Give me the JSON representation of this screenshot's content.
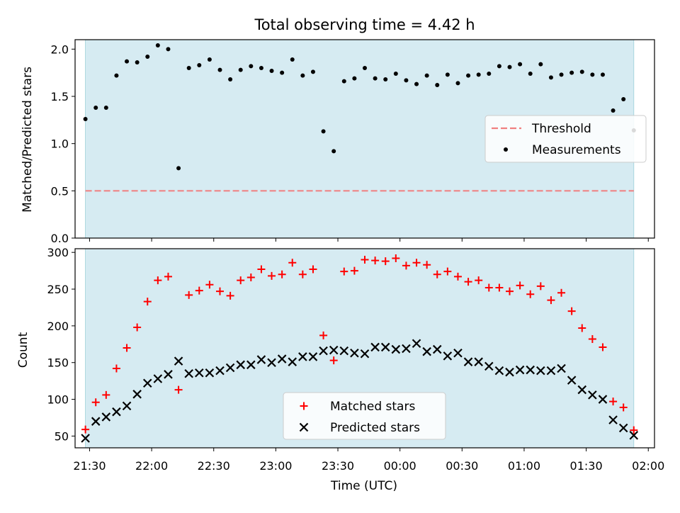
{
  "chart_data": [
    {
      "type": "scatter",
      "title": "Total observing time = 4.42 h",
      "ylabel": "Matched/Predicted stars",
      "ylim": [
        0,
        2.1
      ],
      "xlim": [
        "21:23",
        "02:03"
      ],
      "yticks": [
        "0.0",
        "0.5",
        "1.0",
        "1.5",
        "2.0"
      ],
      "shaded_span": [
        "21:28",
        "01:53"
      ],
      "threshold": {
        "name": "Threshold",
        "value": 0.5,
        "color": "#f08080"
      },
      "legend_position": "center-right",
      "series": [
        {
          "name": "Measurements",
          "color": "#000000",
          "points": [
            [
              "21:28",
              1.26
            ],
            [
              "21:33",
              1.38
            ],
            [
              "21:38",
              1.38
            ],
            [
              "21:43",
              1.72
            ],
            [
              "21:48",
              1.87
            ],
            [
              "21:53",
              1.86
            ],
            [
              "21:58",
              1.92
            ],
            [
              "22:03",
              2.04
            ],
            [
              "22:08",
              2.0
            ],
            [
              "22:13",
              0.74
            ],
            [
              "22:18",
              1.8
            ],
            [
              "22:23",
              1.83
            ],
            [
              "22:28",
              1.89
            ],
            [
              "22:33",
              1.78
            ],
            [
              "22:38",
              1.68
            ],
            [
              "22:43",
              1.78
            ],
            [
              "22:48",
              1.82
            ],
            [
              "22:53",
              1.8
            ],
            [
              "22:58",
              1.77
            ],
            [
              "23:03",
              1.75
            ],
            [
              "23:08",
              1.89
            ],
            [
              "23:13",
              1.72
            ],
            [
              "23:18",
              1.76
            ],
            [
              "23:23",
              1.13
            ],
            [
              "23:28",
              0.92
            ],
            [
              "23:33",
              1.66
            ],
            [
              "23:38",
              1.69
            ],
            [
              "23:43",
              1.8
            ],
            [
              "23:48",
              1.69
            ],
            [
              "23:53",
              1.68
            ],
            [
              "23:58",
              1.74
            ],
            [
              "00:03",
              1.67
            ],
            [
              "00:08",
              1.63
            ],
            [
              "00:13",
              1.72
            ],
            [
              "00:18",
              1.62
            ],
            [
              "00:23",
              1.73
            ],
            [
              "00:28",
              1.64
            ],
            [
              "00:33",
              1.72
            ],
            [
              "00:38",
              1.73
            ],
            [
              "00:43",
              1.74
            ],
            [
              "00:48",
              1.82
            ],
            [
              "00:53",
              1.81
            ],
            [
              "00:58",
              1.84
            ],
            [
              "01:03",
              1.74
            ],
            [
              "01:08",
              1.84
            ],
            [
              "01:13",
              1.7
            ],
            [
              "01:18",
              1.73
            ],
            [
              "01:23",
              1.75
            ],
            [
              "01:28",
              1.76
            ],
            [
              "01:33",
              1.73
            ],
            [
              "01:38",
              1.73
            ],
            [
              "01:43",
              1.35
            ],
            [
              "01:48",
              1.47
            ],
            [
              "01:53",
              1.14
            ]
          ]
        }
      ]
    },
    {
      "type": "scatter",
      "xlabel": "Time (UTC)",
      "ylabel": "Count",
      "ylim": [
        34,
        305
      ],
      "xlim": [
        "21:23",
        "02:03"
      ],
      "yticks": [
        "50",
        "100",
        "150",
        "200",
        "250",
        "300"
      ],
      "xticks": [
        "21:30",
        "22:00",
        "22:30",
        "23:00",
        "23:30",
        "00:00",
        "00:30",
        "01:00",
        "01:30",
        "02:00"
      ],
      "shaded_span": [
        "21:28",
        "01:53"
      ],
      "legend_position": "lower-center",
      "series": [
        {
          "name": "Matched stars",
          "marker": "plus",
          "color": "#ff0000",
          "values": [
            59,
            96,
            106,
            142,
            170,
            198,
            233,
            262,
            267,
            113,
            242,
            248,
            256,
            247,
            241,
            262,
            266,
            277,
            268,
            270,
            286,
            270,
            277,
            187,
            153,
            274,
            275,
            290,
            289,
            288,
            292,
            282,
            286,
            283,
            270,
            274,
            267,
            260,
            262,
            252,
            252,
            247,
            255,
            243,
            254,
            235,
            245,
            220,
            197,
            182,
            171,
            97,
            89,
            58
          ]
        },
        {
          "name": "Predicted stars",
          "marker": "x",
          "color": "#000000",
          "values": [
            47,
            70,
            76,
            83,
            91,
            107,
            122,
            128,
            134,
            152,
            135,
            136,
            136,
            139,
            143,
            147,
            147,
            154,
            150,
            155,
            151,
            158,
            158,
            166,
            167,
            166,
            163,
            162,
            171,
            171,
            168,
            169,
            176,
            165,
            168,
            159,
            163,
            151,
            151,
            145,
            139,
            137,
            140,
            140,
            139,
            139,
            142,
            126,
            113,
            106,
            100,
            72,
            61,
            51
          ]
        }
      ],
      "x": [
        "21:28",
        "21:33",
        "21:38",
        "21:43",
        "21:48",
        "21:53",
        "21:58",
        "22:03",
        "22:08",
        "22:13",
        "22:18",
        "22:23",
        "22:28",
        "22:33",
        "22:38",
        "22:43",
        "22:48",
        "22:53",
        "22:58",
        "23:03",
        "23:08",
        "23:13",
        "23:18",
        "23:23",
        "23:28",
        "23:33",
        "23:38",
        "23:43",
        "23:48",
        "23:53",
        "23:58",
        "00:03",
        "00:08",
        "00:13",
        "00:18",
        "00:23",
        "00:28",
        "00:33",
        "00:38",
        "00:43",
        "00:48",
        "00:53",
        "00:58",
        "01:03",
        "01:08",
        "01:13",
        "01:18",
        "01:23",
        "01:28",
        "01:33",
        "01:38",
        "01:43",
        "01:48",
        "01:53"
      ]
    }
  ]
}
